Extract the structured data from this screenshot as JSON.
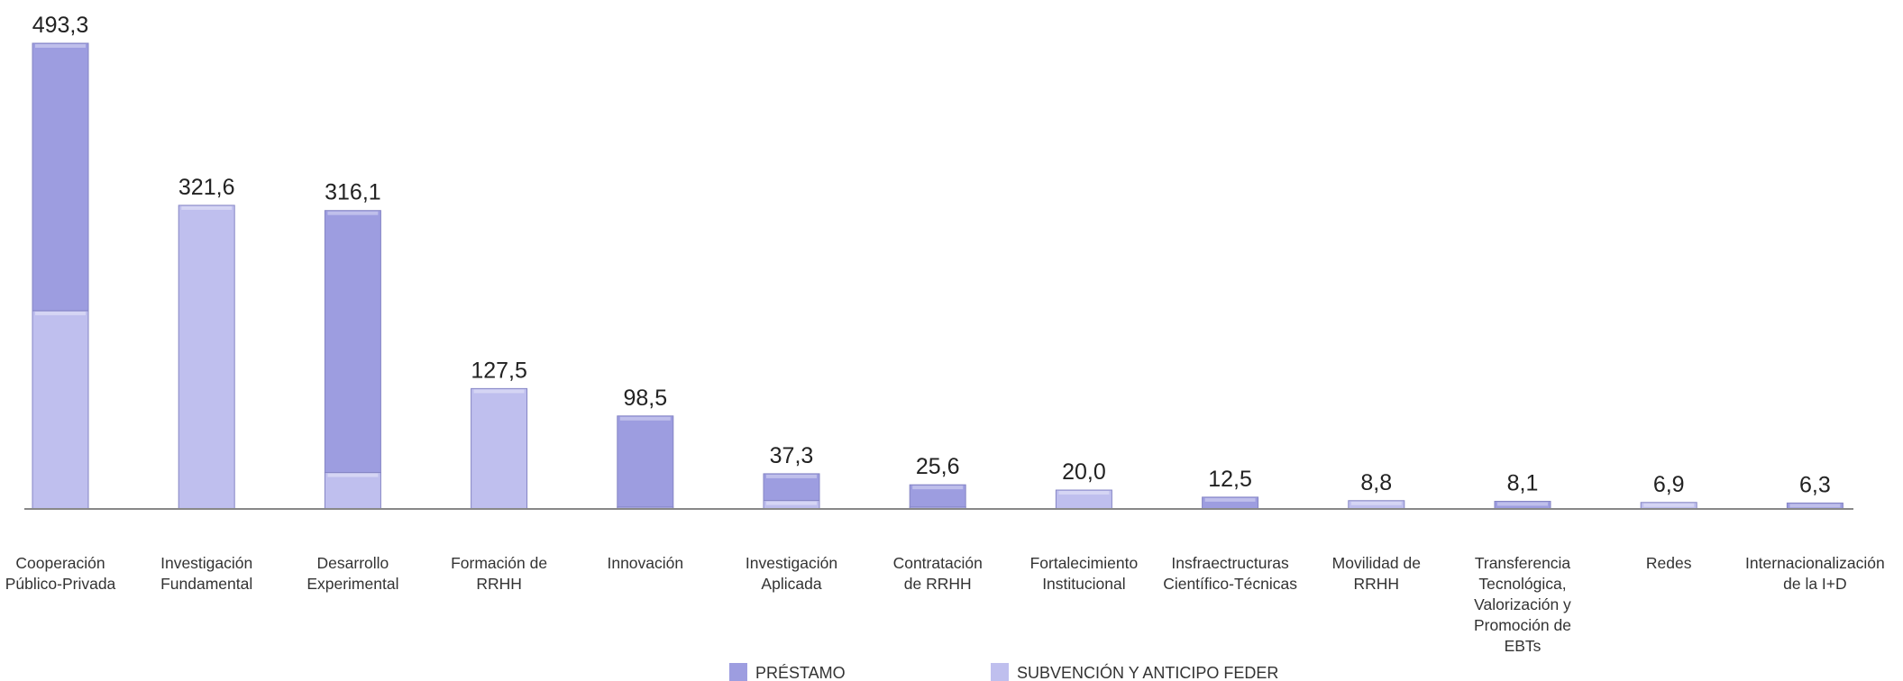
{
  "chart_data": {
    "type": "stacked_bar",
    "categories": [
      [
        "Cooperación",
        "Público-Privada"
      ],
      [
        "Investigación",
        "Fundamental"
      ],
      [
        "Desarrollo",
        "Experimental"
      ],
      [
        "Formación de",
        "RRHH"
      ],
      [
        "Innovación"
      ],
      [
        "Investigación",
        "Aplicada"
      ],
      [
        "Contratación",
        "de RRHH"
      ],
      [
        "Fortalecimiento",
        "Institucional"
      ],
      [
        "Insfraectructuras",
        "Científico-Técnicas"
      ],
      [
        "Movilidad de",
        "RRHH"
      ],
      [
        "Transferencia",
        "Tecnológica,",
        "Valorización y",
        "Promoción de",
        "EBTs"
      ],
      [
        "Redes"
      ],
      [
        "Internacionalización",
        "de la I+D"
      ]
    ],
    "series": [
      {
        "name": "SUBVENCIÓN Y ANTICIPO FEDER",
        "color": "#bfbfee",
        "values": [
          210,
          321.6,
          38.6,
          127.5,
          2,
          9,
          2,
          20,
          0,
          8.8,
          0,
          6.9,
          0
        ]
      },
      {
        "name": "PRÉSTAMO",
        "color": "#9d9de0",
        "values": [
          283.3,
          0,
          277.5,
          0,
          96.5,
          28.3,
          23.6,
          0,
          12.5,
          0,
          8.1,
          0,
          6.3
        ]
      }
    ],
    "totals": [
      493.3,
      321.6,
      316.1,
      127.5,
      98.5,
      37.3,
      25.6,
      20.0,
      12.5,
      8.8,
      8.1,
      6.9,
      6.3
    ],
    "total_labels": [
      "493,3",
      "321,6",
      "316,1",
      "127,5",
      "98,5",
      "37,3",
      "25,6",
      "20,0",
      "12,5",
      "8,8",
      "8,1",
      "6,9",
      "6,3"
    ],
    "legend_order": [
      1,
      0
    ]
  }
}
